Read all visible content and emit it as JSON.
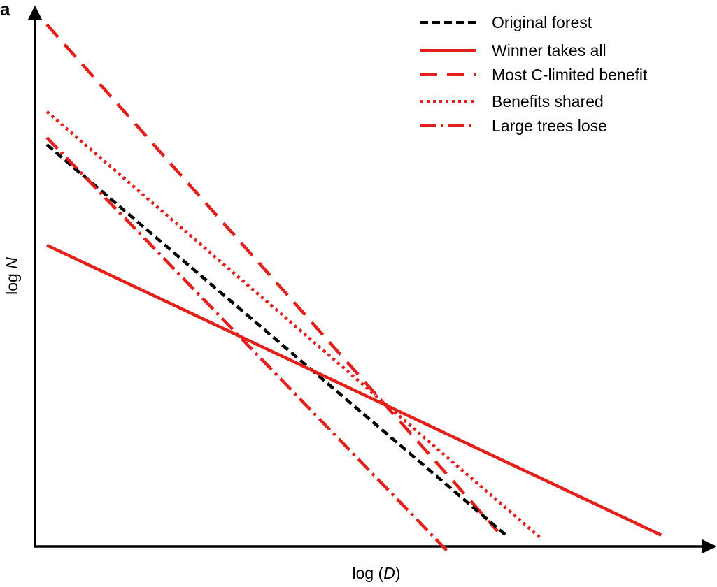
{
  "panel_label": "a",
  "chart_data": {
    "type": "line",
    "title": "",
    "xlabel": "log (D)",
    "ylabel": "log N",
    "xlim": [
      0,
      100
    ],
    "ylim": [
      0,
      100
    ],
    "ticks": "none",
    "grid": false,
    "legend_position": "top-right",
    "series": [
      {
        "name": "Original forest",
        "color": "#000000",
        "style": "dashed",
        "x": [
          1.75,
          69.3
        ],
        "y": [
          74.3,
          2.2
        ]
      },
      {
        "name": "Winner takes all",
        "color": "#e2201c",
        "style": "solid",
        "x": [
          1.75,
          92.3
        ],
        "y": [
          55.7,
          2.1
        ]
      },
      {
        "name": "Most C-limited benefit",
        "color": "#e2201c",
        "style": "long-dashed",
        "x": [
          1.75,
          68.2
        ],
        "y": [
          96.5,
          2.8
        ]
      },
      {
        "name": "Benefits shared",
        "color": "#e2201c",
        "style": "dotted",
        "x": [
          1.75,
          74.4
        ],
        "y": [
          80.4,
          1.7
        ]
      },
      {
        "name": "Large trees lose",
        "color": "#e2201c",
        "style": "dash-dot",
        "x": [
          1.75,
          60.9
        ],
        "y": [
          75.6,
          -1.0
        ]
      }
    ]
  }
}
